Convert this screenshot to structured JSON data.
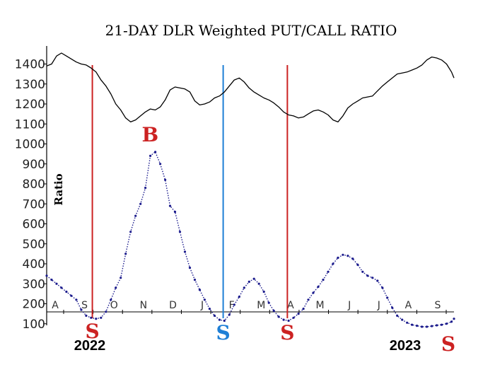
{
  "chart_data": {
    "type": "line",
    "title": "21-DAY DLR Weighted PUT/CALL RATIO",
    "ylabel": "Ratio",
    "y_ticks": [
      "1400",
      "1300",
      "1200",
      "1100",
      "1000",
      "900",
      "800",
      "700",
      "600",
      "500",
      "400",
      "300",
      "200",
      "100"
    ],
    "months": [
      "A",
      "S",
      "O",
      "N",
      "D",
      "J",
      "F",
      "M",
      "A",
      "M",
      "J",
      "J",
      "A",
      "S"
    ],
    "years": [
      "2022",
      "2023"
    ],
    "series": [
      {
        "key": "price",
        "color": "#000000",
        "points": [
          [
            0,
            1390
          ],
          [
            4,
            1400
          ],
          [
            8,
            1440
          ],
          [
            12,
            1455
          ],
          [
            16,
            1440
          ],
          [
            20,
            1425
          ],
          [
            24,
            1410
          ],
          [
            28,
            1400
          ],
          [
            32,
            1395
          ],
          [
            36,
            1380
          ],
          [
            40,
            1360
          ],
          [
            44,
            1320
          ],
          [
            48,
            1290
          ],
          [
            52,
            1250
          ],
          [
            56,
            1200
          ],
          [
            60,
            1170
          ],
          [
            64,
            1130
          ],
          [
            68,
            1110
          ],
          [
            72,
            1120
          ],
          [
            76,
            1140
          ],
          [
            80,
            1160
          ],
          [
            84,
            1175
          ],
          [
            88,
            1170
          ],
          [
            92,
            1185
          ],
          [
            96,
            1220
          ],
          [
            100,
            1270
          ],
          [
            104,
            1285
          ],
          [
            108,
            1280
          ],
          [
            112,
            1275
          ],
          [
            116,
            1260
          ],
          [
            120,
            1215
          ],
          [
            124,
            1195
          ],
          [
            128,
            1200
          ],
          [
            132,
            1210
          ],
          [
            136,
            1230
          ],
          [
            140,
            1240
          ],
          [
            144,
            1260
          ],
          [
            148,
            1290
          ],
          [
            152,
            1320
          ],
          [
            156,
            1330
          ],
          [
            160,
            1310
          ],
          [
            164,
            1280
          ],
          [
            168,
            1260
          ],
          [
            172,
            1245
          ],
          [
            176,
            1230
          ],
          [
            180,
            1220
          ],
          [
            184,
            1205
          ],
          [
            188,
            1185
          ],
          [
            192,
            1160
          ],
          [
            196,
            1145
          ],
          [
            200,
            1140
          ],
          [
            204,
            1130
          ],
          [
            208,
            1135
          ],
          [
            212,
            1150
          ],
          [
            216,
            1165
          ],
          [
            220,
            1170
          ],
          [
            224,
            1160
          ],
          [
            228,
            1145
          ],
          [
            232,
            1120
          ],
          [
            236,
            1110
          ],
          [
            240,
            1140
          ],
          [
            244,
            1180
          ],
          [
            248,
            1200
          ],
          [
            252,
            1215
          ],
          [
            256,
            1230
          ],
          [
            260,
            1235
          ],
          [
            264,
            1240
          ],
          [
            268,
            1265
          ],
          [
            272,
            1290
          ],
          [
            276,
            1310
          ],
          [
            280,
            1330
          ],
          [
            284,
            1350
          ],
          [
            288,
            1355
          ],
          [
            292,
            1360
          ],
          [
            296,
            1370
          ],
          [
            300,
            1380
          ],
          [
            304,
            1395
          ],
          [
            308,
            1420
          ],
          [
            312,
            1435
          ],
          [
            316,
            1430
          ],
          [
            320,
            1420
          ],
          [
            324,
            1400
          ],
          [
            328,
            1360
          ],
          [
            330,
            1330
          ]
        ]
      },
      {
        "key": "ratio",
        "color": "#1a1a8c",
        "points": [
          [
            0,
            340
          ],
          [
            4,
            320
          ],
          [
            8,
            300
          ],
          [
            12,
            280
          ],
          [
            16,
            260
          ],
          [
            20,
            240
          ],
          [
            24,
            220
          ],
          [
            28,
            170
          ],
          [
            32,
            140
          ],
          [
            36,
            130
          ],
          [
            40,
            125
          ],
          [
            44,
            130
          ],
          [
            48,
            160
          ],
          [
            52,
            220
          ],
          [
            56,
            280
          ],
          [
            60,
            330
          ],
          [
            64,
            450
          ],
          [
            68,
            560
          ],
          [
            72,
            640
          ],
          [
            76,
            700
          ],
          [
            80,
            780
          ],
          [
            84,
            940
          ],
          [
            88,
            960
          ],
          [
            92,
            900
          ],
          [
            96,
            820
          ],
          [
            100,
            690
          ],
          [
            104,
            660
          ],
          [
            108,
            560
          ],
          [
            112,
            460
          ],
          [
            116,
            380
          ],
          [
            120,
            320
          ],
          [
            124,
            270
          ],
          [
            128,
            220
          ],
          [
            132,
            175
          ],
          [
            136,
            140
          ],
          [
            140,
            120
          ],
          [
            144,
            115
          ],
          [
            148,
            145
          ],
          [
            152,
            195
          ],
          [
            156,
            235
          ],
          [
            160,
            280
          ],
          [
            164,
            310
          ],
          [
            168,
            325
          ],
          [
            172,
            300
          ],
          [
            176,
            260
          ],
          [
            180,
            205
          ],
          [
            184,
            165
          ],
          [
            188,
            135
          ],
          [
            192,
            120
          ],
          [
            196,
            115
          ],
          [
            200,
            130
          ],
          [
            204,
            150
          ],
          [
            208,
            175
          ],
          [
            212,
            220
          ],
          [
            216,
            255
          ],
          [
            220,
            285
          ],
          [
            224,
            320
          ],
          [
            228,
            360
          ],
          [
            232,
            400
          ],
          [
            236,
            430
          ],
          [
            240,
            445
          ],
          [
            244,
            440
          ],
          [
            248,
            425
          ],
          [
            252,
            395
          ],
          [
            256,
            360
          ],
          [
            260,
            340
          ],
          [
            264,
            330
          ],
          [
            268,
            315
          ],
          [
            272,
            280
          ],
          [
            276,
            230
          ],
          [
            280,
            180
          ],
          [
            284,
            140
          ],
          [
            288,
            120
          ],
          [
            292,
            105
          ],
          [
            296,
            95
          ],
          [
            300,
            90
          ],
          [
            304,
            85
          ],
          [
            308,
            85
          ],
          [
            312,
            88
          ],
          [
            316,
            92
          ],
          [
            320,
            95
          ],
          [
            324,
            100
          ],
          [
            328,
            110
          ],
          [
            330,
            125
          ]
        ]
      }
    ],
    "signals": [
      {
        "label": "S",
        "color": "#cc2222",
        "line_color": "#cc2222",
        "x": 37
      },
      {
        "label": "B",
        "color": "#cc2222",
        "line_color": "",
        "x": 85
      },
      {
        "label": "S",
        "color": "#1e7fd6",
        "line_color": "#1e7fd6",
        "x": 143
      },
      {
        "label": "S",
        "color": "#cc2222",
        "line_color": "#cc2222",
        "x": 195
      },
      {
        "label": "S",
        "color": "#cc2222",
        "line_color": "",
        "x": 329
      }
    ]
  }
}
